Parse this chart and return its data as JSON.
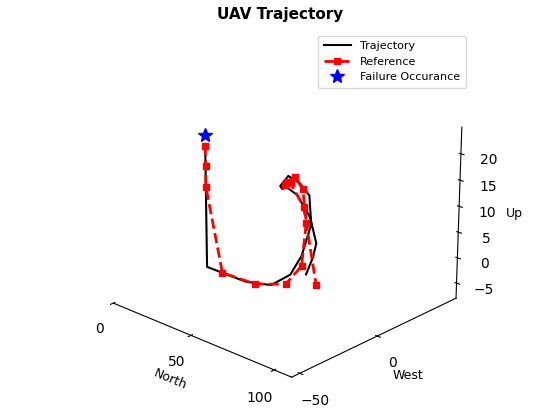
{
  "title": "UAV Trajectory",
  "xlabel": "North",
  "ylabel": "West",
  "zlabel": "Up",
  "trajectory_north": [
    10,
    10,
    10,
    10,
    10,
    10,
    10,
    10,
    10,
    10,
    10,
    20,
    35,
    50,
    60,
    65,
    68,
    65,
    60,
    55,
    52,
    55,
    60,
    65,
    70,
    72,
    70,
    65
  ],
  "trajectory_west": [
    -5,
    -5,
    -5,
    -5,
    -5,
    -5,
    -5,
    -5,
    -5,
    -5,
    -5,
    -5,
    -5,
    -4,
    -2,
    0,
    3,
    5,
    4,
    2,
    0,
    -2,
    -4,
    -3,
    0,
    2,
    2,
    3
  ],
  "trajectory_up": [
    18,
    17,
    15,
    12,
    9,
    6,
    3,
    0,
    -3,
    -5,
    -6,
    -6,
    -6,
    -5,
    -2,
    2,
    8,
    13,
    15,
    16,
    14,
    14,
    15,
    14,
    10,
    5,
    2,
    -2
  ],
  "reference_north": [
    10,
    10,
    10,
    20,
    40,
    58,
    65,
    65,
    62,
    58,
    55,
    57,
    62,
    68,
    72
  ],
  "reference_west": [
    -5,
    -5,
    -5,
    -5,
    -4,
    -3,
    0,
    3,
    4,
    3,
    1,
    -2,
    -4,
    -2,
    2
  ],
  "reference_up": [
    18,
    14,
    10,
    -6,
    -6,
    -4,
    0,
    8,
    14,
    16,
    15,
    15,
    16,
    12,
    -3
  ],
  "failure_north": [
    10
  ],
  "failure_west": [
    -5
  ],
  "failure_up": [
    20
  ],
  "traj_color": "#000000",
  "ref_color": "#ff0000",
  "fail_color": "#0000ff",
  "north_lim": [
    0,
    110
  ],
  "west_lim": [
    -55,
    55
  ],
  "up_lim": [
    -8,
    25
  ],
  "north_ticks": [
    0,
    50,
    100
  ],
  "west_ticks": [
    -50,
    0
  ],
  "up_ticks": [
    -5,
    0,
    5,
    10,
    15,
    20
  ],
  "elev": 22,
  "azim": -47,
  "figsize": [
    5.6,
    4.2
  ],
  "dpi": 100
}
